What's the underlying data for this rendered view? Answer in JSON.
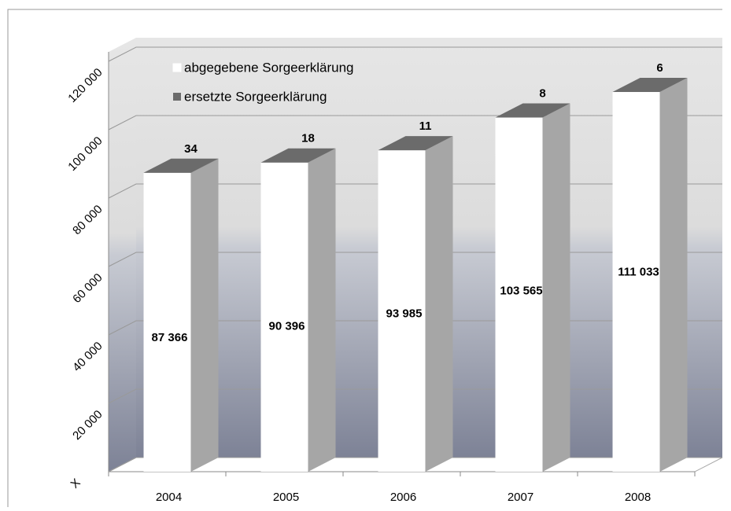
{
  "chart_data": {
    "type": "bar3d",
    "categories": [
      "2004",
      "2005",
      "2006",
      "2007",
      "2008"
    ],
    "series": [
      {
        "name": "abgegebene Sorgeerklärung",
        "color": "#ffffff",
        "values": [
          87366,
          90396,
          93985,
          103565,
          111033
        ],
        "value_labels": [
          "87 366",
          "90 396",
          "93 985",
          "103 565",
          "111 033"
        ]
      },
      {
        "name": "ersetzte Sorgeerklärung",
        "color": "#6b6b6b",
        "values": [
          34,
          18,
          11,
          8,
          6
        ]
      }
    ],
    "ylim": [
      0,
      120000
    ],
    "yticks": [
      {
        "value": 0,
        "label": "X"
      },
      {
        "value": 20000,
        "label": "20 000"
      },
      {
        "value": 40000,
        "label": "40 000"
      },
      {
        "value": 60000,
        "label": "60 000"
      },
      {
        "value": 80000,
        "label": "80 000"
      },
      {
        "value": 100000,
        "label": "100 000"
      },
      {
        "value": 120000,
        "label": "120 000"
      }
    ],
    "grid": true,
    "stacked": true,
    "legend": "top-left"
  }
}
